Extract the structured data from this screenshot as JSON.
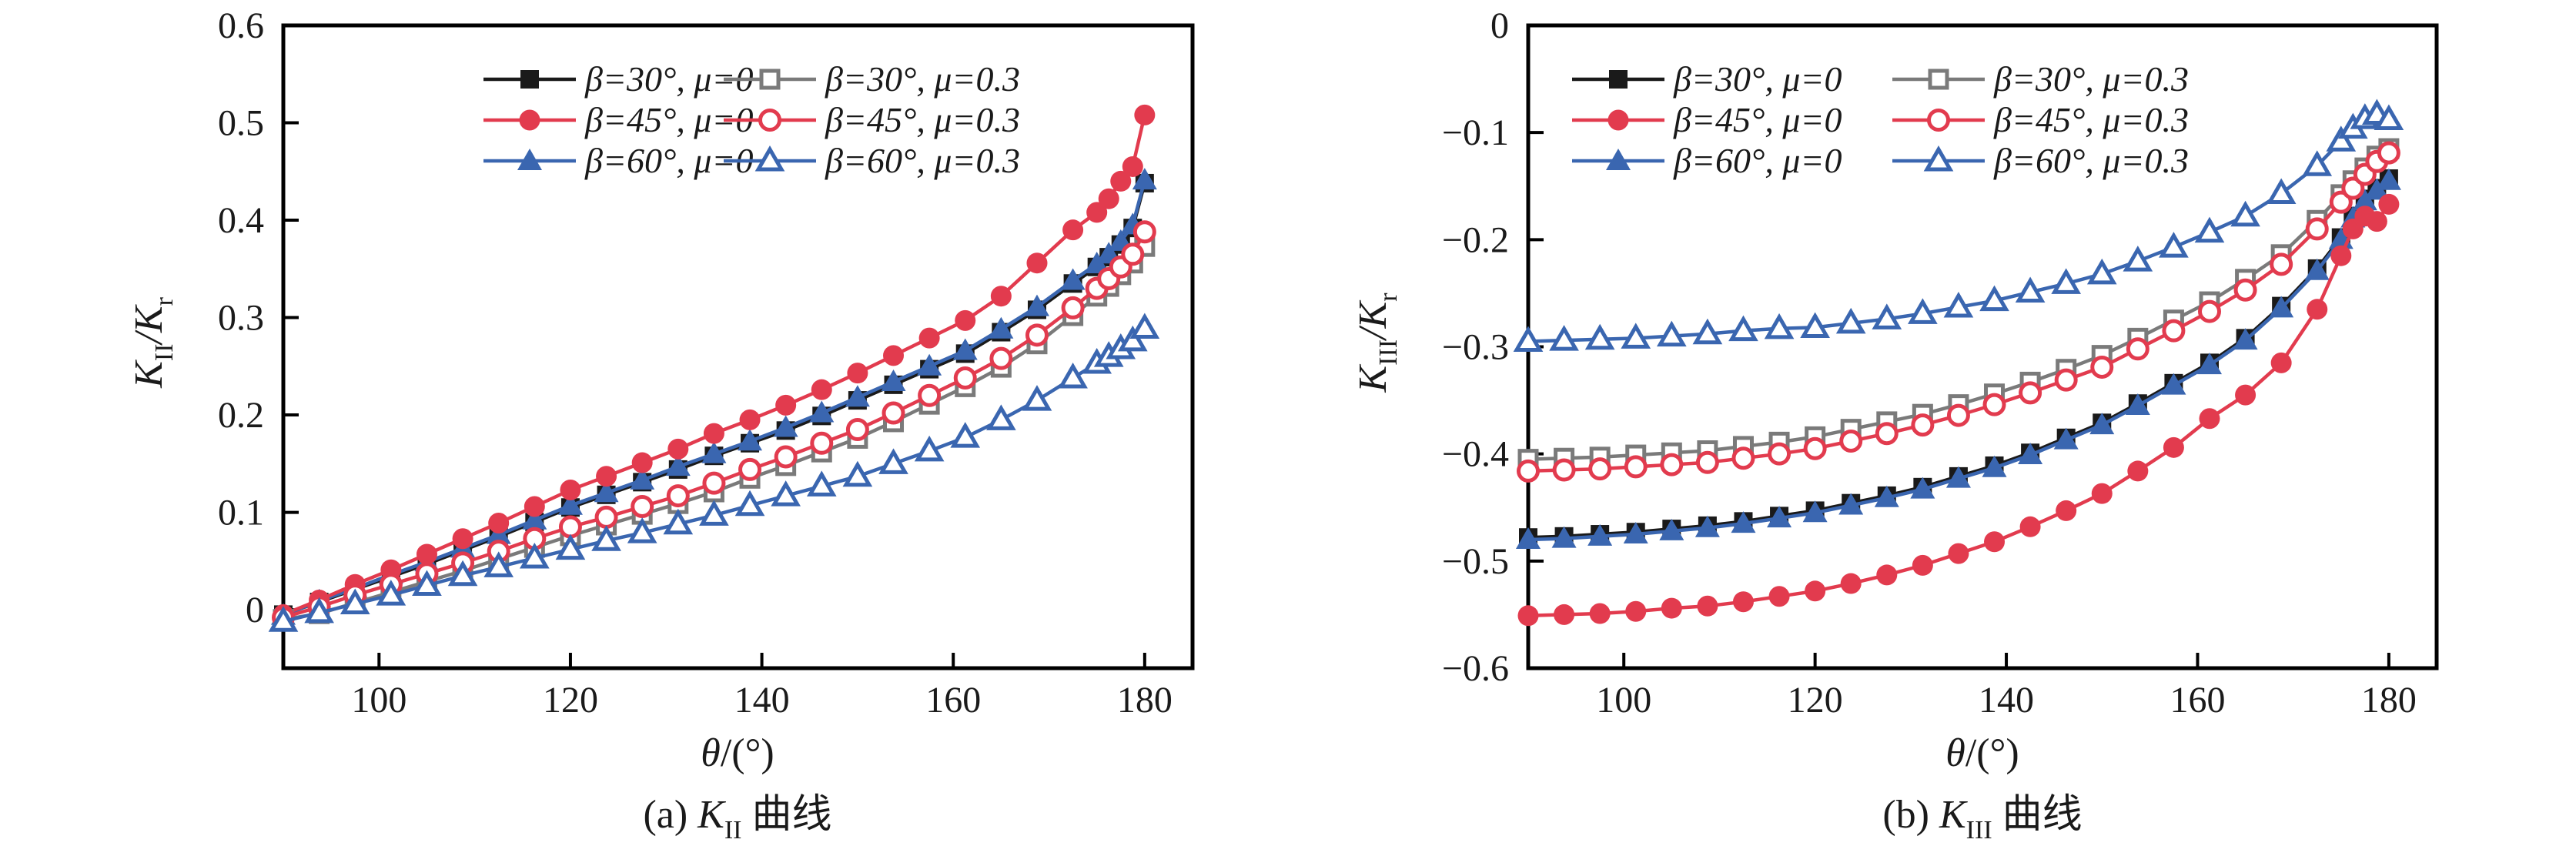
{
  "figure": {
    "background": "#ffffff"
  },
  "colors": {
    "black": "#1a1a1a",
    "red": "#e23b4e",
    "blue": "#3a66b0",
    "gray": "#7a7a7a",
    "axis": "#000000",
    "marker_fill_open": "#ffffff"
  },
  "legend": {
    "entries": [
      {
        "label": "β=30°, μ=0",
        "marker": "square-filled",
        "color": "black"
      },
      {
        "label": "β=45°, μ=0",
        "marker": "circle-filled",
        "color": "red"
      },
      {
        "label": "β=60°, μ=0",
        "marker": "triangle-filled",
        "color": "blue"
      },
      {
        "label": "β=30°, μ=0.3",
        "marker": "square-open",
        "color": "gray"
      },
      {
        "label": "β=45°, μ=0.3",
        "marker": "circle-open",
        "color": "red"
      },
      {
        "label": "β=60°, μ=0.3",
        "marker": "triangle-open",
        "color": "blue"
      }
    ]
  },
  "charts": [
    {
      "caption": {
        "pre": "(a) ",
        "k": "K",
        "sub": "II",
        "post": " 曲线"
      },
      "xlabel": {
        "theta": "θ",
        "rest": "/(°)"
      },
      "ylabel": {
        "k1": "K",
        "sub1": "II",
        "k2": "/K",
        "sub2": "r"
      }
    },
    {
      "caption": {
        "pre": "(b) ",
        "k": "K",
        "sub": "III",
        "post": " 曲线"
      },
      "xlabel": {
        "theta": "θ",
        "rest": "/(°)"
      },
      "ylabel": {
        "k1": "K",
        "sub1": "III",
        "k2": "/K",
        "sub2": "r"
      }
    }
  ],
  "chart_data": [
    {
      "type": "line",
      "panel": "a",
      "title": "(a) K_II 曲线",
      "xlabel": "θ/(°)",
      "ylabel": "K_II/K_r",
      "xlim": [
        90,
        185
      ],
      "ylim": [
        -0.06,
        0.6
      ],
      "grid": false,
      "legend_position": "top-left-inside",
      "x_ticks": [
        100,
        120,
        140,
        160,
        180
      ],
      "x_tick_labels": [
        "100",
        "120",
        "140",
        "160",
        "180"
      ],
      "y_ticks": [
        0.6,
        0.5,
        0.4,
        0.3,
        0.2,
        0.1,
        0
      ],
      "y_tick_labels": [
        "0.6",
        "0.5",
        "0.4",
        "0.3",
        "0.2",
        "0.1",
        "0"
      ],
      "x": [
        90,
        93.75,
        97.5,
        101.25,
        105,
        108.75,
        112.5,
        116.25,
        120,
        123.75,
        127.5,
        131.25,
        135,
        138.75,
        142.5,
        146.25,
        150,
        153.75,
        157.5,
        161.25,
        165,
        168.75,
        172.5,
        175,
        176.25,
        177.5,
        178.75,
        180
      ],
      "series": [
        {
          "name": "β=30°, μ=0",
          "color": "black",
          "marker": "square-filled",
          "values": [
            -0.005,
            0.008,
            0.021,
            0.034,
            0.047,
            0.061,
            0.075,
            0.09,
            0.105,
            0.118,
            0.131,
            0.144,
            0.158,
            0.171,
            0.184,
            0.199,
            0.215,
            0.231,
            0.247,
            0.263,
            0.285,
            0.308,
            0.335,
            0.352,
            0.362,
            0.375,
            0.392,
            0.438
          ]
        },
        {
          "name": "β=60°, μ=0",
          "color": "blue",
          "marker": "triangle-filled",
          "values": [
            -0.006,
            0.009,
            0.022,
            0.036,
            0.049,
            0.063,
            0.077,
            0.092,
            0.107,
            0.12,
            0.133,
            0.147,
            0.16,
            0.173,
            0.187,
            0.202,
            0.218,
            0.234,
            0.25,
            0.266,
            0.288,
            0.311,
            0.338,
            0.355,
            0.365,
            0.378,
            0.395,
            0.441
          ]
        },
        {
          "name": "β=45°, μ=0",
          "color": "red",
          "marker": "circle-filled",
          "values": [
            -0.005,
            0.01,
            0.026,
            0.041,
            0.057,
            0.073,
            0.089,
            0.106,
            0.123,
            0.137,
            0.151,
            0.165,
            0.181,
            0.195,
            0.21,
            0.226,
            0.243,
            0.261,
            0.279,
            0.297,
            0.322,
            0.356,
            0.39,
            0.408,
            0.422,
            0.44,
            0.455,
            0.508
          ]
        },
        {
          "name": "β=30°, μ=0.3",
          "color": "gray",
          "marker": "square-open",
          "values": [
            -0.01,
            -0.004,
            0.007,
            0.018,
            0.029,
            0.04,
            0.052,
            0.064,
            0.076,
            0.087,
            0.098,
            0.109,
            0.121,
            0.135,
            0.148,
            0.162,
            0.176,
            0.193,
            0.211,
            0.229,
            0.249,
            0.273,
            0.302,
            0.322,
            0.332,
            0.344,
            0.356,
            0.373
          ]
        },
        {
          "name": "β=45°, μ=0.3",
          "color": "red",
          "marker": "circle-open",
          "values": [
            -0.008,
            0.003,
            0.015,
            0.026,
            0.037,
            0.048,
            0.06,
            0.073,
            0.085,
            0.095,
            0.106,
            0.117,
            0.13,
            0.144,
            0.157,
            0.171,
            0.185,
            0.202,
            0.22,
            0.238,
            0.258,
            0.282,
            0.31,
            0.33,
            0.34,
            0.352,
            0.365,
            0.388
          ]
        },
        {
          "name": "β=60°, μ=0.3",
          "color": "blue",
          "marker": "triangle-open",
          "values": [
            -0.012,
            -0.003,
            0.006,
            0.015,
            0.025,
            0.035,
            0.044,
            0.053,
            0.062,
            0.071,
            0.079,
            0.088,
            0.097,
            0.107,
            0.117,
            0.127,
            0.137,
            0.15,
            0.163,
            0.177,
            0.195,
            0.215,
            0.238,
            0.253,
            0.26,
            0.268,
            0.276,
            0.289
          ]
        }
      ]
    },
    {
      "type": "line",
      "panel": "b",
      "title": "(b) K_III 曲线",
      "xlabel": "θ/(°)",
      "ylabel": "K_III/K_r",
      "xlim": [
        90,
        185
      ],
      "ylim": [
        -0.6,
        0
      ],
      "grid": false,
      "legend_position": "top-left-inside",
      "x_ticks": [
        100,
        120,
        140,
        160,
        180
      ],
      "x_tick_labels": [
        "100",
        "120",
        "140",
        "160",
        "180"
      ],
      "y_ticks": [
        0,
        -0.1,
        -0.2,
        -0.3,
        -0.4,
        -0.5,
        -0.6
      ],
      "y_tick_labels": [
        "0",
        "−0.1",
        "−0.2",
        "−0.3",
        "−0.4",
        "−0.5",
        "−0.6"
      ],
      "x": [
        90,
        93.75,
        97.5,
        101.25,
        105,
        108.75,
        112.5,
        116.25,
        120,
        123.75,
        127.5,
        131.25,
        135,
        138.75,
        142.5,
        146.25,
        150,
        153.75,
        157.5,
        161.25,
        165,
        168.75,
        172.5,
        175,
        176.25,
        177.5,
        178.75,
        180
      ],
      "series": [
        {
          "name": "β=30°, μ=0",
          "color": "black",
          "marker": "square-filled",
          "values": [
            -0.478,
            -0.477,
            -0.475,
            -0.473,
            -0.47,
            -0.467,
            -0.463,
            -0.458,
            -0.453,
            -0.446,
            -0.439,
            -0.431,
            -0.421,
            -0.411,
            -0.399,
            -0.385,
            -0.371,
            -0.353,
            -0.334,
            -0.315,
            -0.292,
            -0.262,
            -0.227,
            -0.198,
            -0.178,
            -0.162,
            -0.152,
            -0.143
          ]
        },
        {
          "name": "β=60°, μ=0",
          "color": "blue",
          "marker": "triangle-filled",
          "values": [
            -0.48,
            -0.479,
            -0.477,
            -0.475,
            -0.472,
            -0.469,
            -0.465,
            -0.46,
            -0.455,
            -0.448,
            -0.441,
            -0.433,
            -0.423,
            -0.413,
            -0.401,
            -0.387,
            -0.373,
            -0.355,
            -0.336,
            -0.317,
            -0.294,
            -0.264,
            -0.229,
            -0.2,
            -0.18,
            -0.164,
            -0.154,
            -0.145
          ]
        },
        {
          "name": "β=45°, μ=0",
          "color": "red",
          "marker": "circle-filled",
          "values": [
            -0.551,
            -0.55,
            -0.549,
            -0.547,
            -0.544,
            -0.542,
            -0.538,
            -0.533,
            -0.528,
            -0.521,
            -0.513,
            -0.504,
            -0.493,
            -0.482,
            -0.468,
            -0.453,
            -0.437,
            -0.416,
            -0.394,
            -0.367,
            -0.345,
            -0.315,
            -0.265,
            -0.215,
            -0.19,
            -0.178,
            -0.183,
            -0.167
          ]
        },
        {
          "name": "β=30°, μ=0.3",
          "color": "gray",
          "marker": "square-open",
          "values": [
            -0.405,
            -0.404,
            -0.403,
            -0.401,
            -0.399,
            -0.397,
            -0.393,
            -0.389,
            -0.384,
            -0.377,
            -0.37,
            -0.363,
            -0.354,
            -0.344,
            -0.333,
            -0.321,
            -0.308,
            -0.292,
            -0.275,
            -0.258,
            -0.237,
            -0.214,
            -0.182,
            -0.158,
            -0.145,
            -0.133,
            -0.122,
            -0.115
          ]
        },
        {
          "name": "β=45°, μ=0.3",
          "color": "red",
          "marker": "circle-open",
          "values": [
            -0.416,
            -0.415,
            -0.414,
            -0.412,
            -0.41,
            -0.408,
            -0.404,
            -0.4,
            -0.395,
            -0.388,
            -0.381,
            -0.373,
            -0.364,
            -0.354,
            -0.343,
            -0.331,
            -0.319,
            -0.302,
            -0.285,
            -0.267,
            -0.247,
            -0.223,
            -0.19,
            -0.165,
            -0.152,
            -0.139,
            -0.127,
            -0.119
          ]
        },
        {
          "name": "β=60°, μ=0.3",
          "color": "blue",
          "marker": "triangle-open",
          "values": [
            -0.295,
            -0.294,
            -0.293,
            -0.292,
            -0.29,
            -0.288,
            -0.285,
            -0.283,
            -0.282,
            -0.278,
            -0.274,
            -0.269,
            -0.263,
            -0.257,
            -0.249,
            -0.241,
            -0.232,
            -0.22,
            -0.207,
            -0.193,
            -0.178,
            -0.157,
            -0.131,
            -0.108,
            -0.096,
            -0.087,
            -0.083,
            -0.088
          ]
        }
      ]
    }
  ]
}
